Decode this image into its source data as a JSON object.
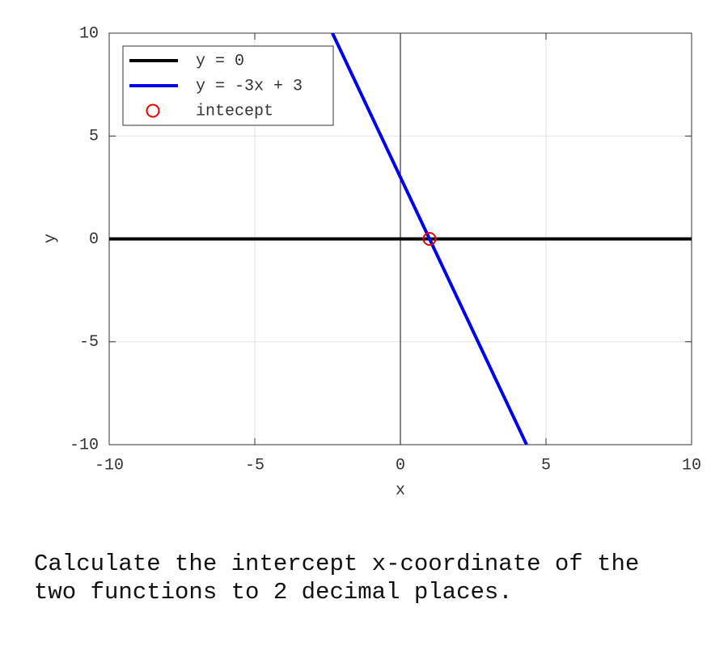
{
  "chart_data": {
    "type": "line",
    "xlabel": "x",
    "ylabel": "y",
    "xlim": [
      -10,
      10
    ],
    "ylim": [
      -10,
      10
    ],
    "xticks": [
      -10,
      -5,
      0,
      5,
      10
    ],
    "yticks": [
      -10,
      -5,
      0,
      5,
      10
    ],
    "grid": true,
    "legend": "upper left",
    "series": [
      {
        "name": "y = 0",
        "color": "#000000",
        "x": [
          -10,
          10
        ],
        "values": [
          0,
          0
        ]
      },
      {
        "name": "y = -3x + 3",
        "color": "#0000ee",
        "x": [
          -2.333,
          4.333
        ],
        "values": [
          10,
          -10
        ]
      },
      {
        "name": "intecept",
        "color": "#ee0000",
        "marker": "circle",
        "x": [
          1
        ],
        "values": [
          0
        ]
      }
    ]
  },
  "question": "Calculate the intercept x-coordinate of the two functions to 2 decimal places."
}
